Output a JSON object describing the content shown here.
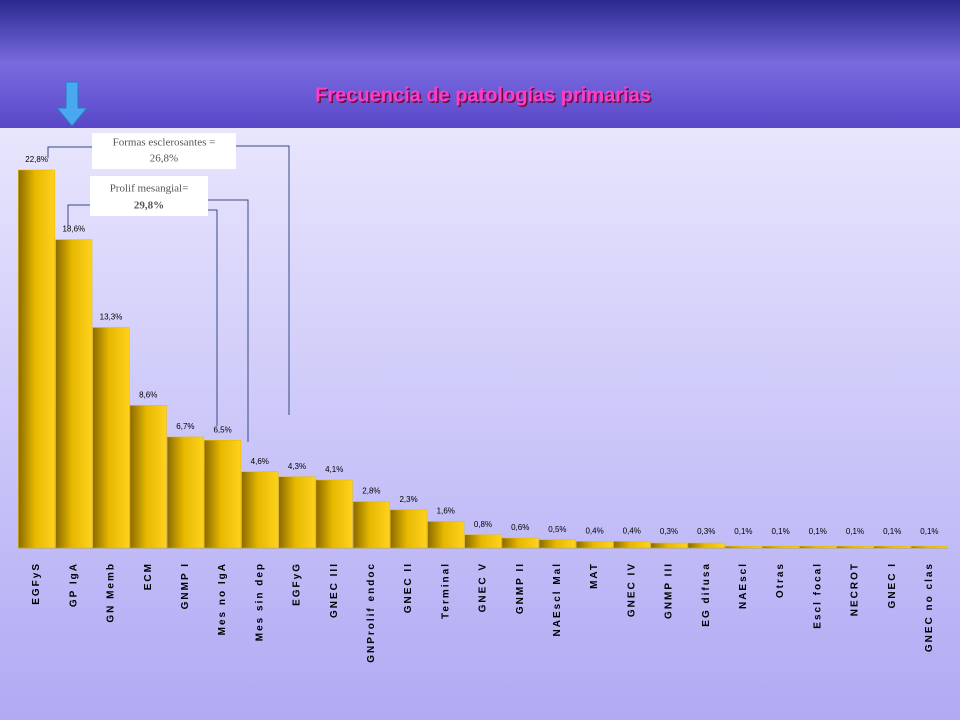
{
  "chart_data": {
    "type": "bar",
    "title": "Frecuencia de patologías primarias",
    "categories": [
      "EGFyS",
      "GP IgA",
      "GN Memb",
      "ECM",
      "GNMP I",
      "Mes no IgA",
      "Mes sin dep",
      "EGFyG",
      "GNEC III",
      "GNProlif endoc",
      "GNEC II",
      "Terminal",
      "GNEC V",
      "GNMP II",
      "NAEscl Mal",
      "MAT",
      "GNEC IV",
      "GNMP III",
      "EG difusa",
      "NAEscl",
      "Otras",
      "Escl focal",
      "NECROT",
      "GNEC I",
      "GNEC no clas"
    ],
    "values": [
      22.8,
      18.6,
      13.3,
      8.6,
      6.7,
      6.5,
      4.6,
      4.3,
      4.1,
      2.8,
      2.3,
      1.6,
      0.8,
      0.6,
      0.5,
      0.4,
      0.4,
      0.3,
      0.3,
      0.1,
      0.1,
      0.1,
      0.1,
      0.1,
      0.1
    ],
    "value_labels": [
      "22,8%",
      "18,6%",
      "13,3%",
      "8,6%",
      "6,7%",
      "6,5%",
      "4,6%",
      "4,3%",
      "4,1%",
      "2,8%",
      "2,3%",
      "1,6%",
      "0,8%",
      "0,6%",
      "0,5%",
      "0,4%",
      "0,4%",
      "0,3%",
      "0,3%",
      "0,1%",
      "0,1%",
      "0,1%",
      "0,1%",
      "0,1%",
      "0,1%"
    ],
    "color": "#e6b800",
    "annotations": [
      [
        "Formas esclerosantes =",
        "26,8%"
      ],
      [
        "Prolif mesangial=",
        "29,8%"
      ]
    ]
  }
}
